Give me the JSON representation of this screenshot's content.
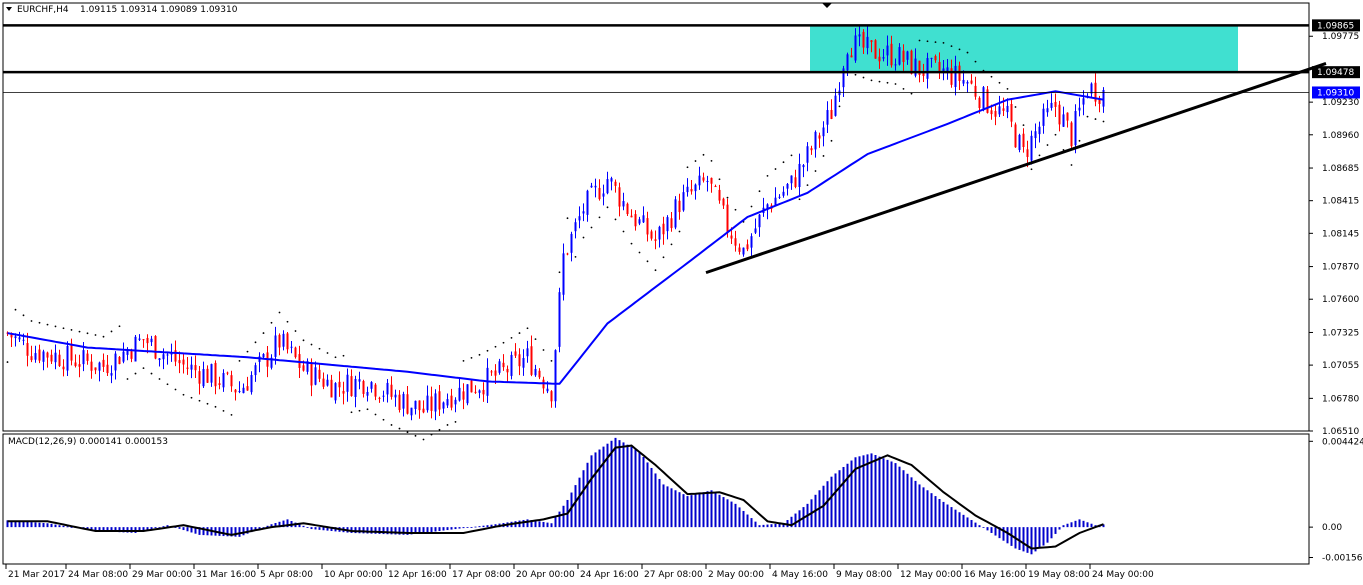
{
  "header": {
    "symbol": "EURCHF,H4",
    "ohlc": "1.09115 1.09314 1.09089 1.09310"
  },
  "indicator": {
    "label": "MACD(12,26,9) 0.000141 0.000153"
  },
  "colors": {
    "bull": "#0000ff",
    "bear": "#ff0000",
    "sma": "#0000ff",
    "zone": "#40e0d0",
    "trendline": "#000000",
    "macd_hist": "#0000cc",
    "macd_signal": "#000000"
  },
  "chart_data": [
    {
      "type": "candlestick",
      "ylim": [
        1.0651,
        1.1005
      ],
      "price_ticks": [
        "1.09775",
        "1.09230",
        "1.08960",
        "1.08685",
        "1.08415",
        "1.08145",
        "1.07870",
        "1.07600",
        "1.07325",
        "1.07055",
        "1.06780",
        "1.06510"
      ],
      "price_tick_values": [
        1.09775,
        1.0923,
        1.0896,
        1.08685,
        1.08415,
        1.08145,
        1.0787,
        1.076,
        1.07325,
        1.07055,
        1.0678,
        1.0651
      ],
      "time_labels": [
        "21 Mar 2017",
        "24 Mar 08:00",
        "29 Mar 00:00",
        "31 Mar 16:00",
        "5 Apr 08:00",
        "10 Apr 00:00",
        "12 Apr 16:00",
        "17 Apr 08:00",
        "20 Apr 00:00",
        "24 Apr 16:00",
        "27 Apr 08:00",
        "2 May 00:00",
        "4 May 16:00",
        "9 May 08:00",
        "12 May 00:00",
        "16 May 16:00",
        "19 May 08:00",
        "24 May 00:00"
      ],
      "time_label_index": [
        0,
        15,
        31,
        47,
        63,
        79,
        95,
        111,
        127,
        143,
        159,
        175,
        191,
        207,
        223,
        239,
        255,
        271
      ],
      "bar_count": 275,
      "anchors": [
        [
          0,
          1.0732
        ],
        [
          6,
          1.0718
        ],
        [
          14,
          1.0712
        ],
        [
          24,
          1.0705
        ],
        [
          30,
          1.0718
        ],
        [
          34,
          1.0727
        ],
        [
          38,
          1.0718
        ],
        [
          44,
          1.0705
        ],
        [
          52,
          1.0695
        ],
        [
          58,
          1.0685
        ],
        [
          64,
          1.0708
        ],
        [
          68,
          1.0725
        ],
        [
          74,
          1.0702
        ],
        [
          82,
          1.0688
        ],
        [
          90,
          1.0693
        ],
        [
          96,
          1.068
        ],
        [
          104,
          1.0668
        ],
        [
          110,
          1.068
        ],
        [
          118,
          1.069
        ],
        [
          124,
          1.07
        ],
        [
          130,
          1.0712
        ],
        [
          136,
          1.0685
        ],
        [
          139,
          1.0795
        ],
        [
          144,
          1.0835
        ],
        [
          150,
          1.086
        ],
        [
          156,
          1.083
        ],
        [
          162,
          1.0808
        ],
        [
          168,
          1.084
        ],
        [
          175,
          1.0858
        ],
        [
          180,
          1.082
        ],
        [
          184,
          1.08
        ],
        [
          190,
          1.0838
        ],
        [
          196,
          1.0855
        ],
        [
          202,
          1.089
        ],
        [
          206,
          1.0915
        ],
        [
          210,
          1.0972
        ],
        [
          216,
          1.0965
        ],
        [
          222,
          1.0962
        ],
        [
          228,
          1.095
        ],
        [
          234,
          1.0948
        ],
        [
          240,
          1.094
        ],
        [
          244,
          1.0925
        ],
        [
          250,
          1.091
        ],
        [
          254,
          1.088
        ],
        [
          258,
          1.0903
        ],
        [
          262,
          1.092
        ],
        [
          266,
          1.0895
        ],
        [
          270,
          1.0935
        ],
        [
          274,
          1.0931
        ]
      ],
      "sma_anchors": [
        [
          0,
          1.0732
        ],
        [
          20,
          1.072
        ],
        [
          60,
          1.0712
        ],
        [
          100,
          1.07
        ],
        [
          120,
          1.0692
        ],
        [
          138,
          1.069
        ],
        [
          150,
          1.074
        ],
        [
          170,
          1.079
        ],
        [
          185,
          1.0828
        ],
        [
          200,
          1.0848
        ],
        [
          215,
          1.088
        ],
        [
          235,
          1.0905
        ],
        [
          250,
          1.0925
        ],
        [
          262,
          1.0932
        ],
        [
          274,
          1.0925
        ]
      ],
      "support_line": {
        "from": [
          175,
          1.0782
        ],
        "to": [
          330,
          1.0955
        ]
      },
      "resistance_lines": [
        {
          "price": 1.09865,
          "label": "1.09865"
        },
        {
          "price": 1.09478,
          "label": "1.09478"
        }
      ],
      "current_price": {
        "price": 1.0931,
        "label": "1.09310"
      },
      "supply_zone": {
        "from_index": 201,
        "to_index": 308,
        "top": 1.09865,
        "bottom": 1.09478
      }
    },
    {
      "type": "bar",
      "name": "MACD(12,26,9)",
      "ylim": [
        -0.0019,
        0.0048
      ],
      "ticks": [
        "0.004424",
        "0.00",
        "-0.001565"
      ],
      "tick_values": [
        0.004424,
        0.0,
        -0.001565
      ],
      "hist_anchors": [
        [
          0,
          0.00035
        ],
        [
          10,
          0.0002
        ],
        [
          22,
          -0.0002
        ],
        [
          32,
          -0.0003
        ],
        [
          40,
          0.0001
        ],
        [
          48,
          -0.0004
        ],
        [
          58,
          -0.0005
        ],
        [
          66,
          0.00015
        ],
        [
          70,
          0.0004
        ],
        [
          76,
          -0.0001
        ],
        [
          86,
          -0.0003
        ],
        [
          100,
          -0.0004
        ],
        [
          112,
          -0.0001
        ],
        [
          122,
          0.00015
        ],
        [
          130,
          0.0004
        ],
        [
          136,
          0.0002
        ],
        [
          140,
          0.0014
        ],
        [
          146,
          0.0037
        ],
        [
          152,
          0.0046
        ],
        [
          158,
          0.0039
        ],
        [
          164,
          0.0022
        ],
        [
          170,
          0.0016
        ],
        [
          176,
          0.0019
        ],
        [
          182,
          0.0012
        ],
        [
          188,
          0.0001
        ],
        [
          194,
          0.0002
        ],
        [
          200,
          0.0012
        ],
        [
          206,
          0.0026
        ],
        [
          212,
          0.0036
        ],
        [
          216,
          0.0038
        ],
        [
          222,
          0.0033
        ],
        [
          228,
          0.0022
        ],
        [
          234,
          0.0013
        ],
        [
          240,
          0.0005
        ],
        [
          246,
          -0.0003
        ],
        [
          252,
          -0.0011
        ],
        [
          256,
          -0.0014
        ],
        [
          260,
          -0.0008
        ],
        [
          264,
          0.0001
        ],
        [
          268,
          0.0004
        ],
        [
          272,
          0.0001
        ],
        [
          274,
          0.00014
        ]
      ],
      "signal_anchors": [
        [
          0,
          0.0003
        ],
        [
          10,
          0.0003
        ],
        [
          22,
          -0.0002
        ],
        [
          34,
          -0.0002
        ],
        [
          44,
          0.0001
        ],
        [
          56,
          -0.0004
        ],
        [
          66,
          0.0
        ],
        [
          74,
          0.0002
        ],
        [
          86,
          -0.0002
        ],
        [
          100,
          -0.0003
        ],
        [
          114,
          -0.0003
        ],
        [
          124,
          0.0001
        ],
        [
          134,
          0.0004
        ],
        [
          140,
          0.0007
        ],
        [
          146,
          0.0025
        ],
        [
          152,
          0.0041
        ],
        [
          156,
          0.0042
        ],
        [
          162,
          0.0032
        ],
        [
          170,
          0.0017
        ],
        [
          178,
          0.0018
        ],
        [
          184,
          0.0014
        ],
        [
          190,
          0.0003
        ],
        [
          196,
          0.0001
        ],
        [
          204,
          0.0011
        ],
        [
          212,
          0.003
        ],
        [
          220,
          0.0037
        ],
        [
          226,
          0.0032
        ],
        [
          234,
          0.0018
        ],
        [
          242,
          0.0006
        ],
        [
          250,
          -0.0003
        ],
        [
          256,
          -0.0011
        ],
        [
          262,
          -0.001
        ],
        [
          268,
          -0.0003
        ],
        [
          274,
          0.00015
        ]
      ]
    }
  ]
}
